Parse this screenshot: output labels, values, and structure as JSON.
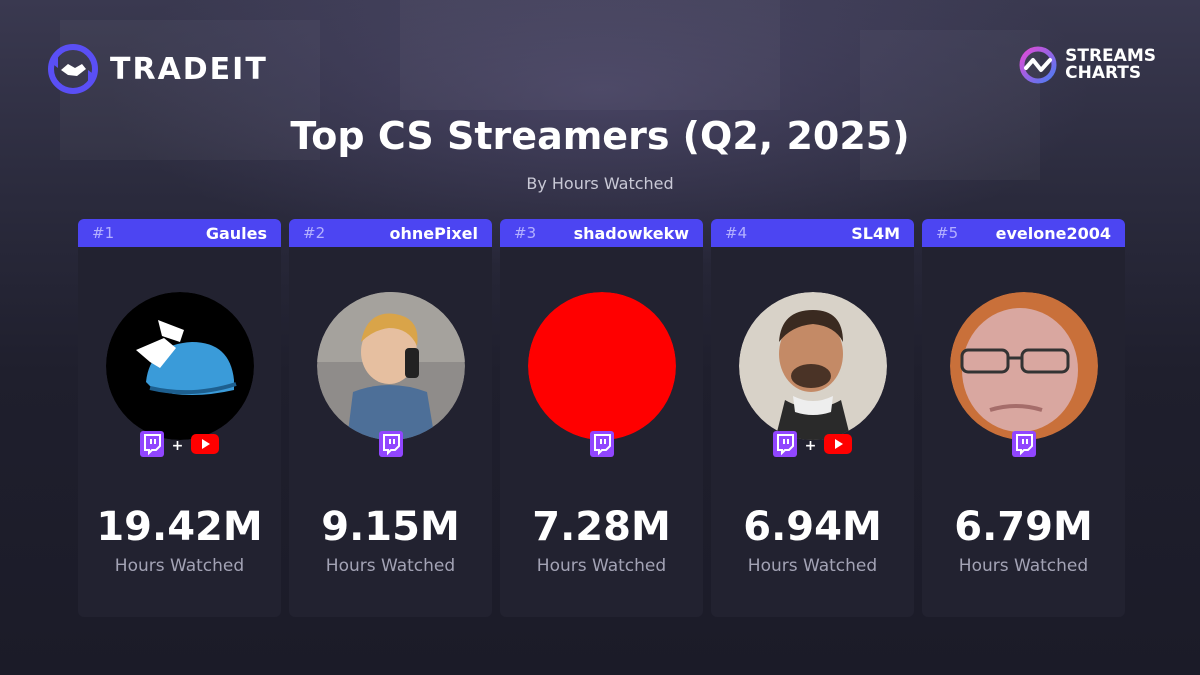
{
  "header": {
    "brand_left": "TRADEIT",
    "brand_right": "STREAMS\nCHARTS"
  },
  "chart_data": {
    "type": "bar",
    "title": "Top CS Streamers (Q2, 2025)",
    "subtitle": "By Hours Watched",
    "unit_label": "Hours Watched",
    "categories": [
      "Gaules",
      "ohnePixel",
      "shadowkekw",
      "SL4M",
      "evelone2004"
    ],
    "values": [
      19.42,
      9.15,
      7.28,
      6.94,
      6.79
    ],
    "value_labels": [
      "19.42M",
      "9.15M",
      "7.28M",
      "6.94M",
      "6.79M"
    ],
    "ranks": [
      "#1",
      "#2",
      "#3",
      "#4",
      "#5"
    ],
    "platforms": [
      [
        "twitch",
        "youtube"
      ],
      [
        "twitch"
      ],
      [
        "twitch"
      ],
      [
        "twitch",
        "youtube"
      ],
      [
        "twitch"
      ]
    ]
  },
  "colors": {
    "accent": "#4c45f2",
    "twitch": "#9146ff",
    "youtube": "#ff0000",
    "card": "#222230"
  }
}
